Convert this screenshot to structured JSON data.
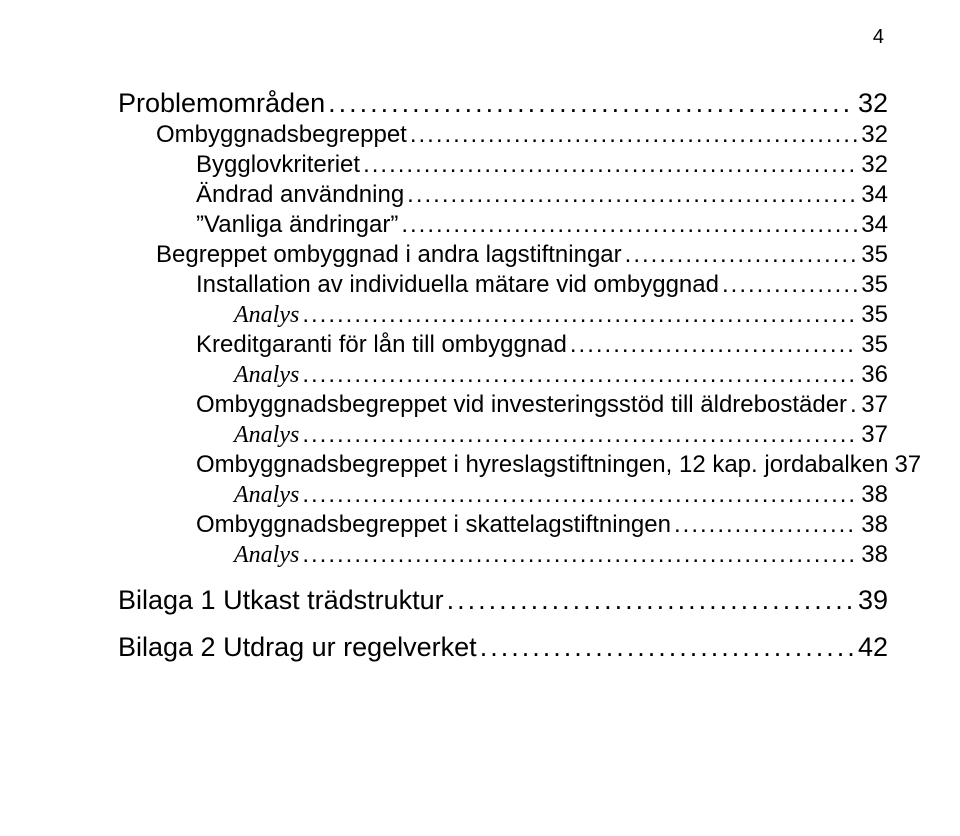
{
  "page_number": "4",
  "toc": [
    {
      "level": 1,
      "label": "Problemområden",
      "page": "32"
    },
    {
      "level": 2,
      "label": "Ombyggnadsbegreppet",
      "page": "32"
    },
    {
      "level": 3,
      "label": "Bygglovkriteriet",
      "page": "32"
    },
    {
      "level": 3,
      "label": "Ändrad användning",
      "page": "34"
    },
    {
      "level": 3,
      "label": "”Vanliga ändringar”",
      "page": "34"
    },
    {
      "level": 2,
      "label": "Begreppet ombyggnad i andra lagstiftningar",
      "page": "35"
    },
    {
      "level": 3,
      "label": "Installation av individuella mätare vid ombyggnad",
      "page": "35"
    },
    {
      "level": 4,
      "label": "Analys",
      "page": "35"
    },
    {
      "level": 3,
      "label": "Kreditgaranti för lån till ombyggnad",
      "page": "35"
    },
    {
      "level": 4,
      "label": "Analys",
      "page": "36"
    },
    {
      "level": 3,
      "label": "Ombyggnadsbegreppet vid investeringsstöd till äldrebostäder",
      "page": "37"
    },
    {
      "level": 4,
      "label": "Analys",
      "page": "37"
    },
    {
      "level": 3,
      "label": "Ombyggnadsbegreppet i hyreslagstiftningen, 12 kap. jordabalken",
      "page": "37"
    },
    {
      "level": 4,
      "label": "Analys",
      "page": "38"
    },
    {
      "level": 3,
      "label": "Ombyggnadsbegreppet i skattelagstiftningen",
      "page": "38"
    },
    {
      "level": 4,
      "label": "Analys",
      "page": "38"
    },
    {
      "level": 1,
      "label": "Bilaga 1 Utkast trädstruktur",
      "page": "39"
    },
    {
      "level": 1,
      "label": "Bilaga 2  Utdrag ur regelverket",
      "page": "42"
    }
  ]
}
